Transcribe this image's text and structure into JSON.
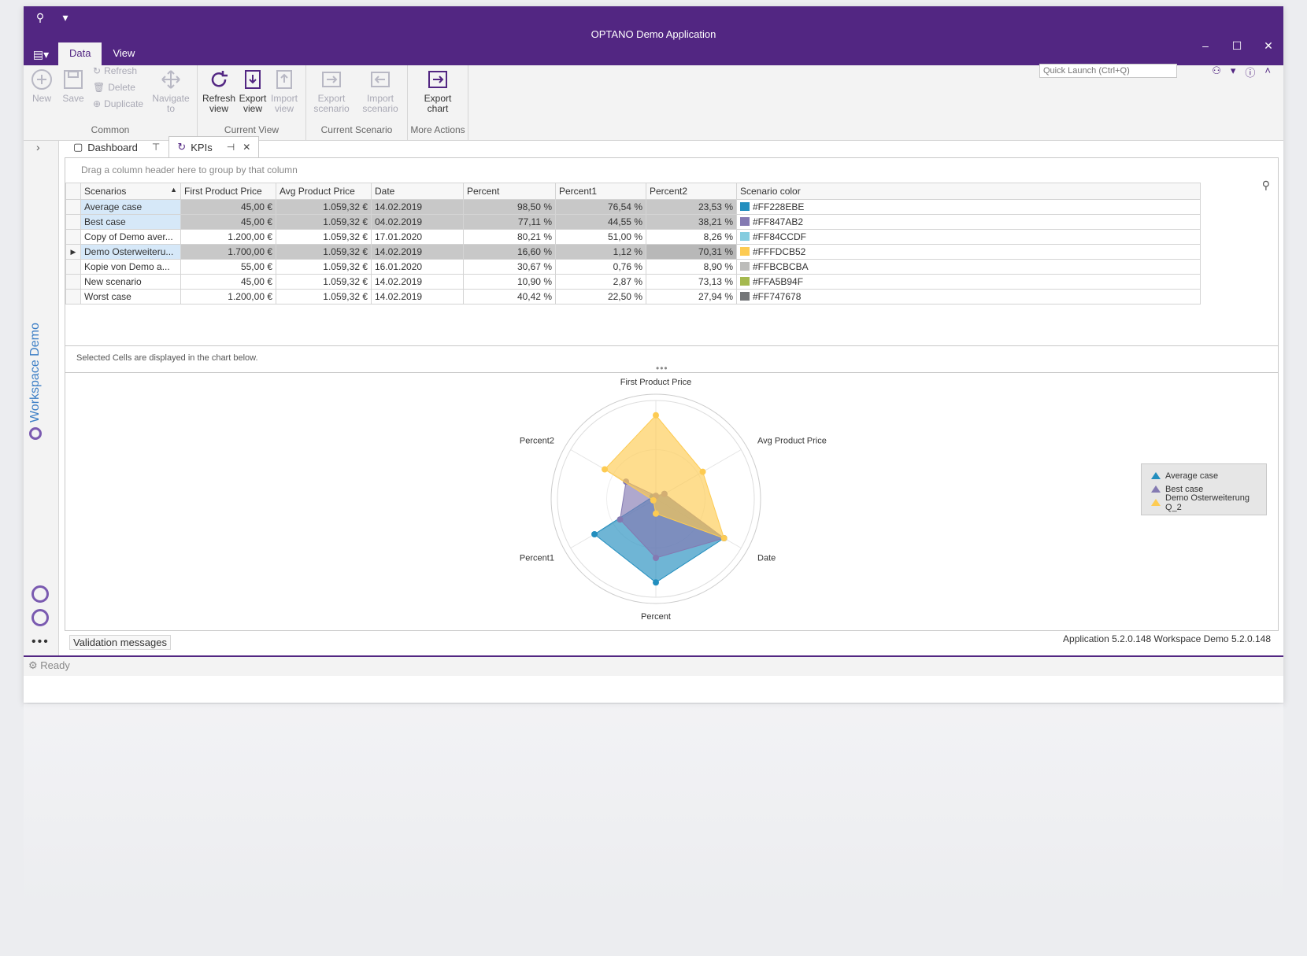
{
  "app": {
    "title": "OPTANO Demo Application"
  },
  "window_controls": {
    "minimize": "–",
    "maximize": "☐",
    "close": "✕"
  },
  "ribbon": {
    "tabs": [
      {
        "label": "Data"
      },
      {
        "label": "View"
      }
    ],
    "quick_launch_placeholder": "Quick Launch (Ctrl+Q)",
    "groups": {
      "common": {
        "label": "Common",
        "new": "New",
        "save": "Save",
        "refresh": "Refresh",
        "delete": "Delete",
        "duplicate": "Duplicate",
        "navigate_to": "Navigate to"
      },
      "current_view": {
        "label": "Current View",
        "refresh_view": "Refresh view",
        "export_view": "Export view",
        "import_view": "Import view"
      },
      "current_scenario": {
        "label": "Current Scenario",
        "export_scenario": "Export scenario",
        "import_scenario": "Import scenario"
      },
      "more_actions": {
        "label": "More Actions",
        "export_chart": "Export chart"
      }
    }
  },
  "sidebar": {
    "workspace_label": "Workspace Demo",
    "more": "•••"
  },
  "doc_tabs": [
    {
      "label": "Dashboard",
      "icon": "dashboard-icon"
    },
    {
      "label": "KPIs",
      "icon": "refresh-icon"
    }
  ],
  "grid": {
    "group_hint": "Drag a column header here to group by that column",
    "columns": [
      "Scenarios",
      "First Product Price",
      "Avg Product Price",
      "Date",
      "Percent",
      "Percent1",
      "Percent2",
      "Scenario color"
    ],
    "rows": [
      {
        "scenario": "Average case",
        "first": "45,00 €",
        "avg": "1.059,32 €",
        "date": "14.02.2019",
        "p": "98,50 %",
        "p1": "76,54 %",
        "p2": "23,53 %",
        "color": "#FF228EBE",
        "swatch": "#228EBE"
      },
      {
        "scenario": "Best case",
        "first": "45,00 €",
        "avg": "1.059,32 €",
        "date": "04.02.2019",
        "p": "77,11 %",
        "p1": "44,55 %",
        "p2": "38,21 %",
        "color": "#FF847AB2",
        "swatch": "#847AB2"
      },
      {
        "scenario": "Copy of Demo aver...",
        "first": "1.200,00 €",
        "avg": "1.059,32 €",
        "date": "17.01.2020",
        "p": "80,21 %",
        "p1": "51,00 %",
        "p2": "8,26 %",
        "color": "#FF84CCDF",
        "swatch": "#84CCDF"
      },
      {
        "scenario": "Demo Osterweiteru...",
        "first": "1.700,00 €",
        "avg": "1.059,32 €",
        "date": "14.02.2019",
        "p": "16,60 %",
        "p1": "1,12 %",
        "p2": "70,31 %",
        "color": "#FFFDCB52",
        "swatch": "#FDCB52"
      },
      {
        "scenario": "Kopie von Demo a...",
        "first": "55,00 €",
        "avg": "1.059,32 €",
        "date": "16.01.2020",
        "p": "30,67 %",
        "p1": "0,76 %",
        "p2": "8,90 %",
        "color": "#FFBCBCBA",
        "swatch": "#BCBCBA"
      },
      {
        "scenario": "New scenario",
        "first": "45,00 €",
        "avg": "1.059,32 €",
        "date": "14.02.2019",
        "p": "10,90 %",
        "p1": "2,87 %",
        "p2": "73,13 %",
        "color": "#FFA5B94F",
        "swatch": "#A5B94F"
      },
      {
        "scenario": "Worst case",
        "first": "1.200,00 €",
        "avg": "1.059,32 €",
        "date": "14.02.2019",
        "p": "40,42 %",
        "p1": "22,50 %",
        "p2": "27,94 %",
        "color": "#FF747678",
        "swatch": "#747678"
      }
    ],
    "selection_hint": "Selected Cells are displayed in the chart below."
  },
  "chart_data": {
    "type": "radar",
    "axes": [
      "First Product Price",
      "Avg Product Price",
      "Date",
      "Percent",
      "Percent1",
      "Percent2"
    ],
    "rmax": 1,
    "series": [
      {
        "name": "Average case",
        "color": "#228EBE",
        "values": [
          0.03,
          0.1,
          0.8,
          0.85,
          0.72,
          0.04
        ]
      },
      {
        "name": "Best case",
        "color": "#847AB2",
        "values": [
          0.03,
          0.1,
          0.8,
          0.6,
          0.42,
          0.35
        ]
      },
      {
        "name": "Demo Osterweiterung Q_2",
        "color": "#FDCB52",
        "values": [
          0.85,
          0.55,
          0.8,
          0.15,
          0.03,
          0.6
        ]
      }
    ],
    "legend_position": "right"
  },
  "status": {
    "validation": "Validation messages",
    "version": "Application 5.2.0.148  Workspace Demo 5.2.0.148",
    "ready": "Ready"
  }
}
